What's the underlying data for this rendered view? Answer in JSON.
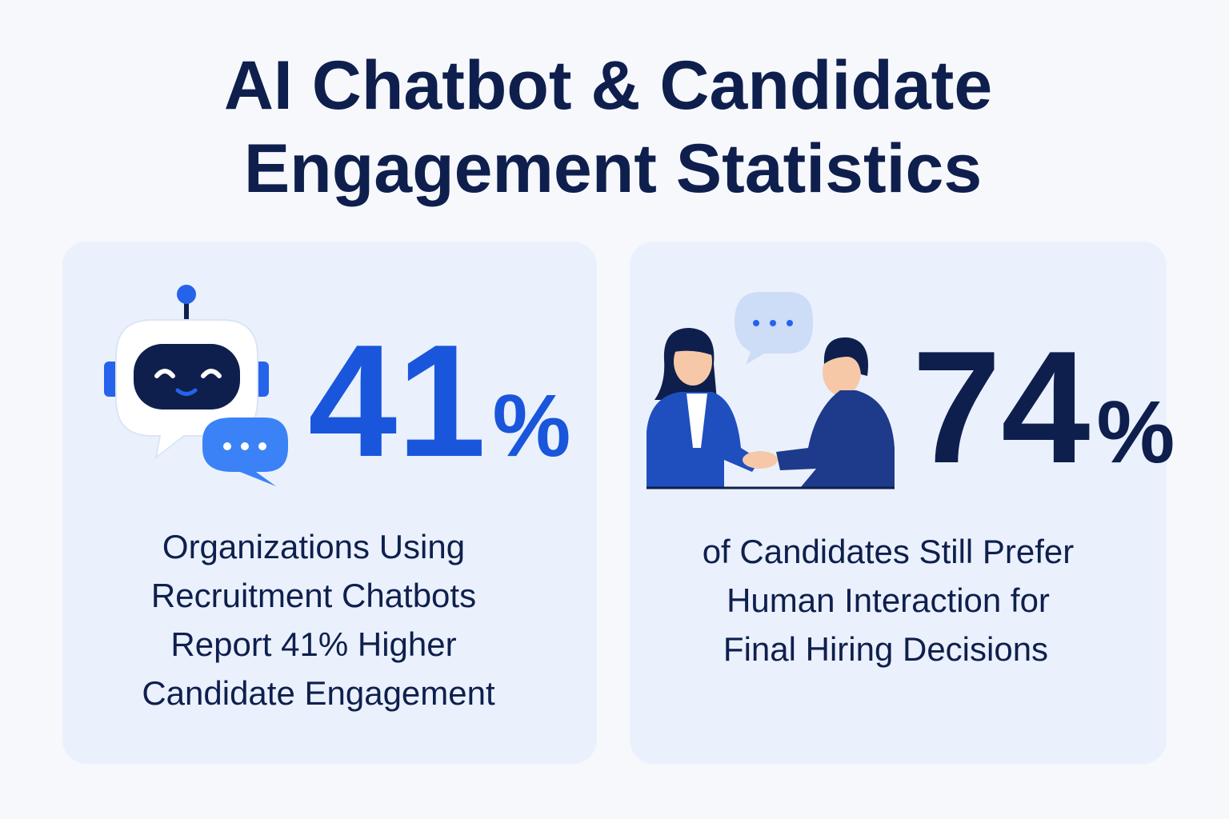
{
  "header": {
    "title_lines": [
      "AI Chatbot & Candidate",
      "Engagement Statistics"
    ]
  },
  "cards": [
    {
      "stat": "41",
      "unit": "%",
      "description_lines": [
        "Organizations Using",
        "Recruitment Chatbots",
        "Report 41% Higher",
        "Candidate Engagement"
      ]
    },
    {
      "stat": "74",
      "unit": "%",
      "description_lines": [
        "of Candidates Still Prefer",
        "Human Interaction for",
        "Final Hiring Decisions"
      ]
    }
  ]
}
